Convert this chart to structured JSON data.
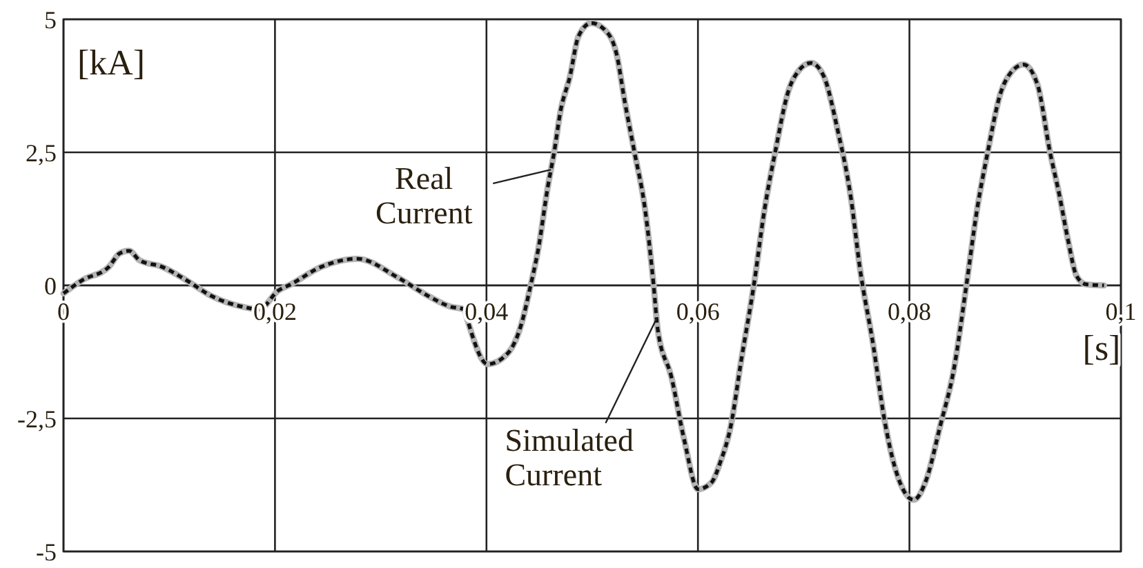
{
  "chart_data": {
    "type": "line",
    "xlabel": "[s]",
    "ylabel": "[kA]",
    "x": [
      0,
      0.0018,
      0.0043,
      0.0053,
      0.0062,
      0.0072,
      0.0093,
      0.0116,
      0.014,
      0.0169,
      0.0185,
      0.0203,
      0.0215,
      0.0244,
      0.0278,
      0.0316,
      0.0345,
      0.0366,
      0.0379,
      0.0382,
      0.0401,
      0.042,
      0.0433,
      0.0442,
      0.0449,
      0.0458,
      0.0464,
      0.047,
      0.0479,
      0.0487,
      0.0499,
      0.0512,
      0.0523,
      0.0531,
      0.054,
      0.055,
      0.0558,
      0.0562,
      0.0575,
      0.0587,
      0.06,
      0.0613,
      0.0621,
      0.0631,
      0.0641,
      0.0653,
      0.0663,
      0.0673,
      0.0686,
      0.0694,
      0.0707,
      0.0719,
      0.0732,
      0.0745,
      0.0753,
      0.0766,
      0.0776,
      0.0786,
      0.0804,
      0.0816,
      0.0829,
      0.0842,
      0.0854,
      0.0864,
      0.0874,
      0.0886,
      0.0896,
      0.0908,
      0.0921,
      0.0933,
      0.0942,
      0.095,
      0.0958,
      0.0967,
      0.0984
    ],
    "series": [
      {
        "name": "Simulated Current",
        "color": "#b4b4b4",
        "line_style": "solid",
        "values": [
          -0.15,
          0.1,
          0.35,
          0.6,
          0.65,
          0.47,
          0.35,
          0.1,
          -0.2,
          -0.4,
          -0.45,
          -0.1,
          0.02,
          0.35,
          0.5,
          0.15,
          -0.2,
          -0.4,
          -0.45,
          -0.65,
          -1.48,
          -1.28,
          -0.73,
          0.02,
          0.68,
          1.85,
          2.5,
          3.27,
          3.93,
          4.68,
          4.93,
          4.8,
          4.35,
          3.43,
          2.5,
          1.43,
          0.02,
          -0.83,
          -1.73,
          -2.9,
          -3.83,
          -3.7,
          -3.33,
          -2.65,
          -1.4,
          0.02,
          1.43,
          2.5,
          3.68,
          4.0,
          4.18,
          3.93,
          2.93,
          1.6,
          0.35,
          -1.15,
          -2.48,
          -3.4,
          -4.03,
          -3.65,
          -2.65,
          -1.58,
          0.02,
          1.43,
          2.5,
          3.6,
          4.0,
          4.15,
          3.78,
          2.5,
          1.68,
          0.85,
          0.18,
          0.02,
          0
        ]
      },
      {
        "name": "Real Current",
        "color": "#111111",
        "line_style": "dashed",
        "values": [
          -0.15,
          0.1,
          0.35,
          0.6,
          0.65,
          0.47,
          0.35,
          0.1,
          -0.2,
          -0.4,
          -0.45,
          -0.1,
          0.02,
          0.35,
          0.5,
          0.15,
          -0.2,
          -0.4,
          -0.45,
          -0.65,
          -1.48,
          -1.28,
          -0.73,
          0.02,
          0.68,
          1.85,
          2.5,
          3.27,
          3.93,
          4.68,
          4.93,
          4.8,
          4.35,
          3.43,
          2.5,
          1.43,
          0.02,
          -0.83,
          -1.73,
          -2.9,
          -3.83,
          -3.7,
          -3.33,
          -2.65,
          -1.4,
          0.02,
          1.43,
          2.5,
          3.68,
          4.0,
          4.18,
          3.93,
          2.93,
          1.6,
          0.35,
          -1.15,
          -2.48,
          -3.4,
          -4.03,
          -3.65,
          -2.65,
          -1.58,
          0.02,
          1.43,
          2.5,
          3.6,
          4.0,
          4.15,
          3.78,
          2.5,
          1.68,
          0.85,
          0.18,
          0.02,
          0
        ]
      }
    ],
    "xlim": [
      0,
      0.1
    ],
    "ylim": [
      -5,
      5
    ],
    "xticks": [
      0,
      {
        "value": 0.02,
        "label": "0,02"
      },
      {
        "value": 0.04,
        "label": "0,04"
      },
      {
        "value": 0.06,
        "label": "0,06"
      },
      {
        "value": 0.08,
        "label": "0,08"
      },
      {
        "value": 0.1,
        "label": "0,1"
      }
    ],
    "yticks": [
      -5,
      {
        "value": -2.5,
        "label": "-2,5"
      },
      0,
      {
        "value": 2.5,
        "label": "2,5"
      },
      5
    ],
    "grid": true
  }
}
